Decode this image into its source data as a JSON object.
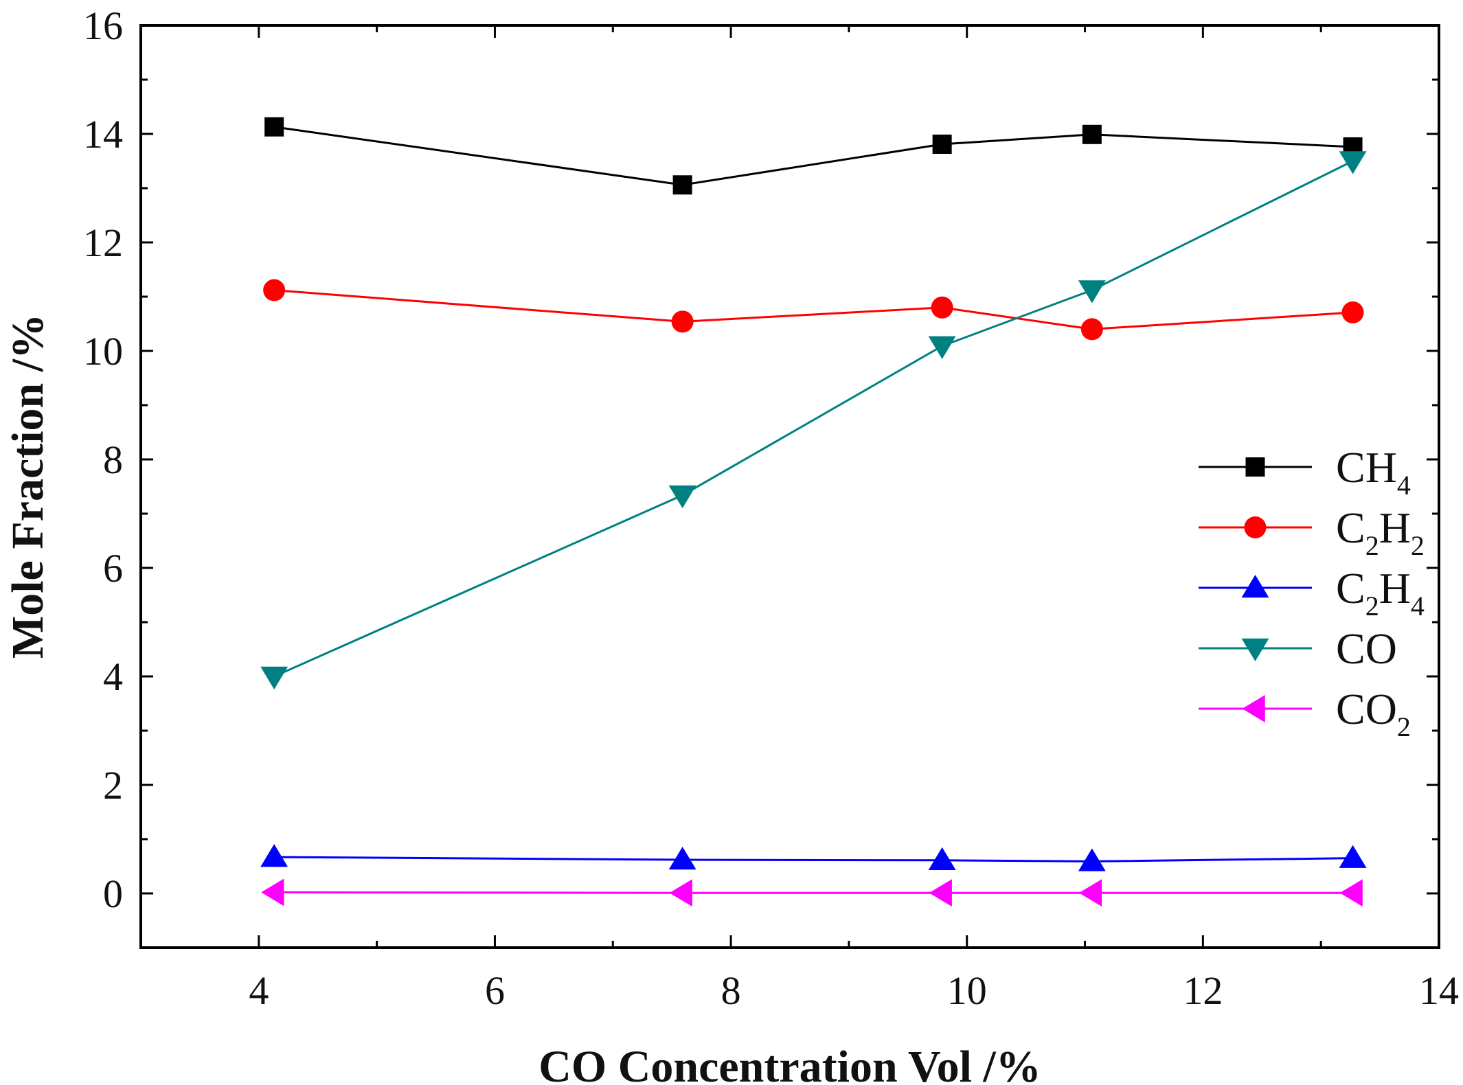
{
  "chart_data": {
    "type": "line",
    "title": "",
    "xlabel": "CO Concentration Vol /%",
    "ylabel": "Mole Fraction /%",
    "xlim": [
      3,
      14
    ],
    "ylim": [
      -1,
      16
    ],
    "xticks": [
      4,
      6,
      8,
      10,
      12,
      14
    ],
    "yticks": [
      0,
      2,
      4,
      6,
      8,
      10,
      12,
      14,
      16
    ],
    "x": [
      4.13,
      7.59,
      9.79,
      11.06,
      13.27
    ],
    "legend_position": "center-right",
    "series": [
      {
        "name": "CH4",
        "label_main": "CH",
        "label_sub1": "4",
        "label_mid": "",
        "label_sub2": "",
        "marker": "square",
        "color": "#000000",
        "values": [
          14.13,
          13.06,
          13.81,
          13.99,
          13.76
        ]
      },
      {
        "name": "C2H2",
        "label_main": "C",
        "label_sub1": "2",
        "label_mid": "H",
        "label_sub2": "2",
        "marker": "circle",
        "color": "#ff0000",
        "values": [
          11.12,
          10.54,
          10.8,
          10.4,
          10.71
        ]
      },
      {
        "name": "C2H4",
        "label_main": "C",
        "label_sub1": "2",
        "label_mid": "H",
        "label_sub2": "4",
        "marker": "triangle-up",
        "color": "#0000ff",
        "values": [
          0.67,
          0.62,
          0.61,
          0.59,
          0.65
        ]
      },
      {
        "name": "CO",
        "label_main": "CO",
        "label_sub1": "",
        "label_mid": "",
        "label_sub2": "",
        "marker": "triangle-down",
        "color": "#008080",
        "values": [
          4.0,
          7.34,
          10.09,
          11.12,
          13.5
        ]
      },
      {
        "name": "CO2",
        "label_main": "CO",
        "label_sub1": "2",
        "label_mid": "",
        "label_sub2": "",
        "marker": "triangle-left",
        "color": "#ff00ff",
        "values": [
          0.02,
          0.01,
          0.01,
          0.01,
          0.01
        ]
      }
    ]
  }
}
